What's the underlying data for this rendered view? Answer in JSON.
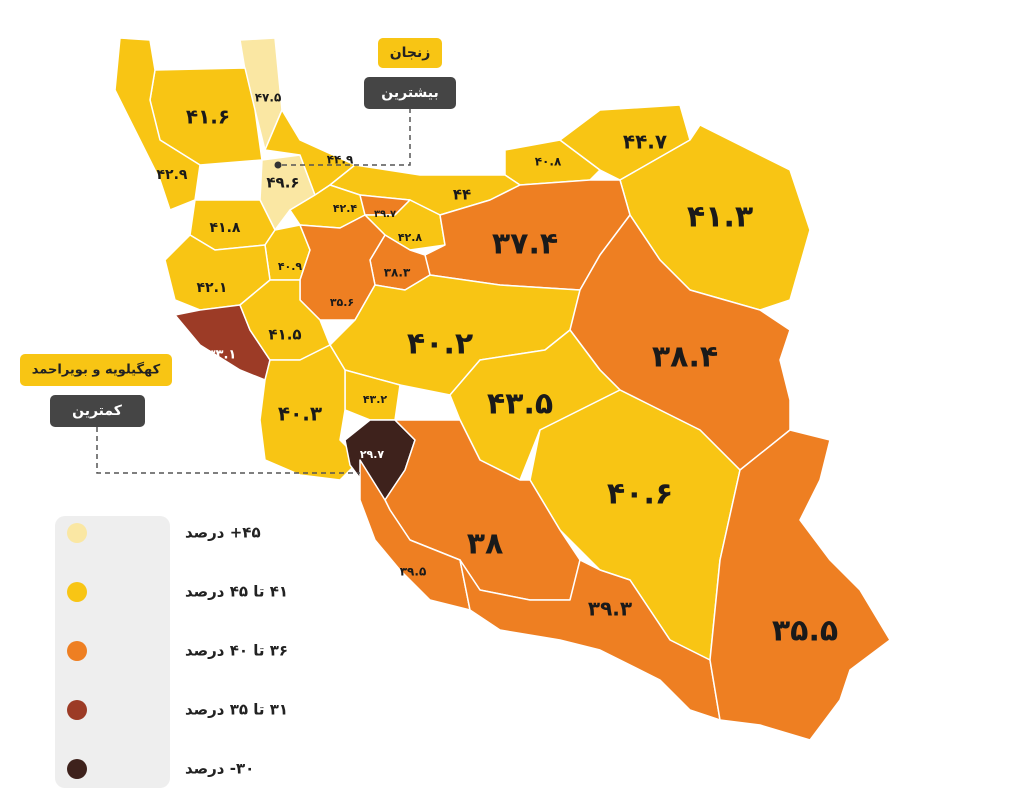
{
  "map": {
    "regions": [
      {
        "label": "۴۷.۵",
        "color": "#fae7a3"
      },
      {
        "label": "۴۱.۶",
        "color": "#f8c514"
      },
      {
        "label": "۴۲.۹",
        "color": "#f8c514"
      },
      {
        "label": "۴۹.۶",
        "color": "#fae7a3"
      },
      {
        "label": "۴۴.۹",
        "color": "#f8c514"
      },
      {
        "label": "۴۰.۸",
        "color": "#f8c514"
      },
      {
        "label": "۴۴.۷",
        "color": "#f8c514"
      },
      {
        "label": "۴۱.۳",
        "color": "#f8c514"
      },
      {
        "label": "۴۴",
        "color": "#f8c514"
      },
      {
        "label": "۴۲.۴",
        "color": "#f8c514"
      },
      {
        "label": "۳۹.۷",
        "color": "#ee7f22"
      },
      {
        "label": "۴۲.۸",
        "color": "#f8c514"
      },
      {
        "label": "۴۱.۸",
        "color": "#f8c514"
      },
      {
        "label": "۳۷.۴",
        "color": "#ee7f22"
      },
      {
        "label": "۴۰.۹",
        "color": "#f8c514"
      },
      {
        "label": "۳۸.۳",
        "color": "#ee7f22"
      },
      {
        "label": "۳۵.۶",
        "color": "#ee7f22"
      },
      {
        "label": "۴۲.۱",
        "color": "#f8c514"
      },
      {
        "label": "۳۳.۱",
        "color": "#9c3b26"
      },
      {
        "label": "۴۱.۵",
        "color": "#f8c514"
      },
      {
        "label": "۴۰.۲",
        "color": "#f8c514"
      },
      {
        "label": "۳۸.۴",
        "color": "#ee7f22"
      },
      {
        "label": "۴۳.۵",
        "color": "#f8c514"
      },
      {
        "label": "۴۳.۲",
        "color": "#f8c514"
      },
      {
        "label": "۴۰.۳",
        "color": "#f8c514"
      },
      {
        "label": "۲۹.۷",
        "color": "#3e221c"
      },
      {
        "label": "۴۰.۶",
        "color": "#f8c514"
      },
      {
        "label": "۳۸",
        "color": "#ee7f22"
      },
      {
        "label": "۳۹.۵",
        "color": "#ee7f22"
      },
      {
        "label": "۳۹.۳",
        "color": "#ee7f22"
      },
      {
        "label": "۳۵.۵",
        "color": "#ee7f22"
      }
    ],
    "legend": [
      {
        "label": "۴۵+ درصد",
        "color": "#fae7a3"
      },
      {
        "label": "۴۱ تا ۴۵ درصد",
        "color": "#f8c514"
      },
      {
        "label": "۳۶ تا ۴۰ درصد",
        "color": "#ee7f22"
      },
      {
        "label": "۳۱ تا ۳۵ درصد",
        "color": "#9c3b26"
      },
      {
        "label": "۳۰- درصد",
        "color": "#3e221c"
      }
    ],
    "callouts": [
      {
        "title": "زنجان",
        "caption": "بیشترین"
      },
      {
        "title": "کهگیلویه و بویراحمد",
        "caption": "کمترین"
      }
    ]
  }
}
